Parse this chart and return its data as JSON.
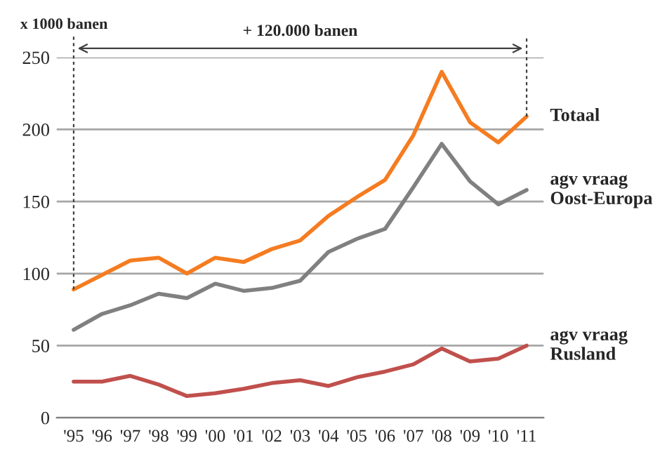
{
  "chart_data": {
    "type": "line",
    "ylabel": "x 1000 banen",
    "categories": [
      "'95",
      "'96",
      "'97",
      "'98",
      "'99",
      "'00",
      "'01",
      "'02",
      "'03",
      "'04",
      "'05",
      "'06",
      "'07",
      "'08",
      "'09",
      "'10",
      "'11"
    ],
    "series": [
      {
        "name": "Totaal",
        "color": "#f57c20",
        "values": [
          89,
          99,
          109,
          111,
          100,
          111,
          108,
          117,
          123,
          140,
          153,
          165,
          196,
          240,
          205,
          191,
          209
        ]
      },
      {
        "name": "agv vraag\nOost-Europa",
        "color": "#808080",
        "values": [
          61,
          72,
          78,
          86,
          83,
          93,
          88,
          90,
          95,
          115,
          124,
          131,
          160,
          190,
          164,
          148,
          158
        ]
      },
      {
        "name": "agv vraag\nRusland",
        "color": "#c0504d",
        "values": [
          25,
          25,
          29,
          23,
          15,
          17,
          20,
          24,
          26,
          22,
          28,
          32,
          37,
          48,
          39,
          41,
          50
        ]
      }
    ],
    "annotations": [
      "+ 120.000 banen"
    ],
    "ylim": [
      0,
      250
    ],
    "yticks": [
      0,
      50,
      100,
      150,
      200,
      250
    ],
    "grid": "y",
    "legend": false,
    "marker": "none",
    "line_style": "solid"
  }
}
